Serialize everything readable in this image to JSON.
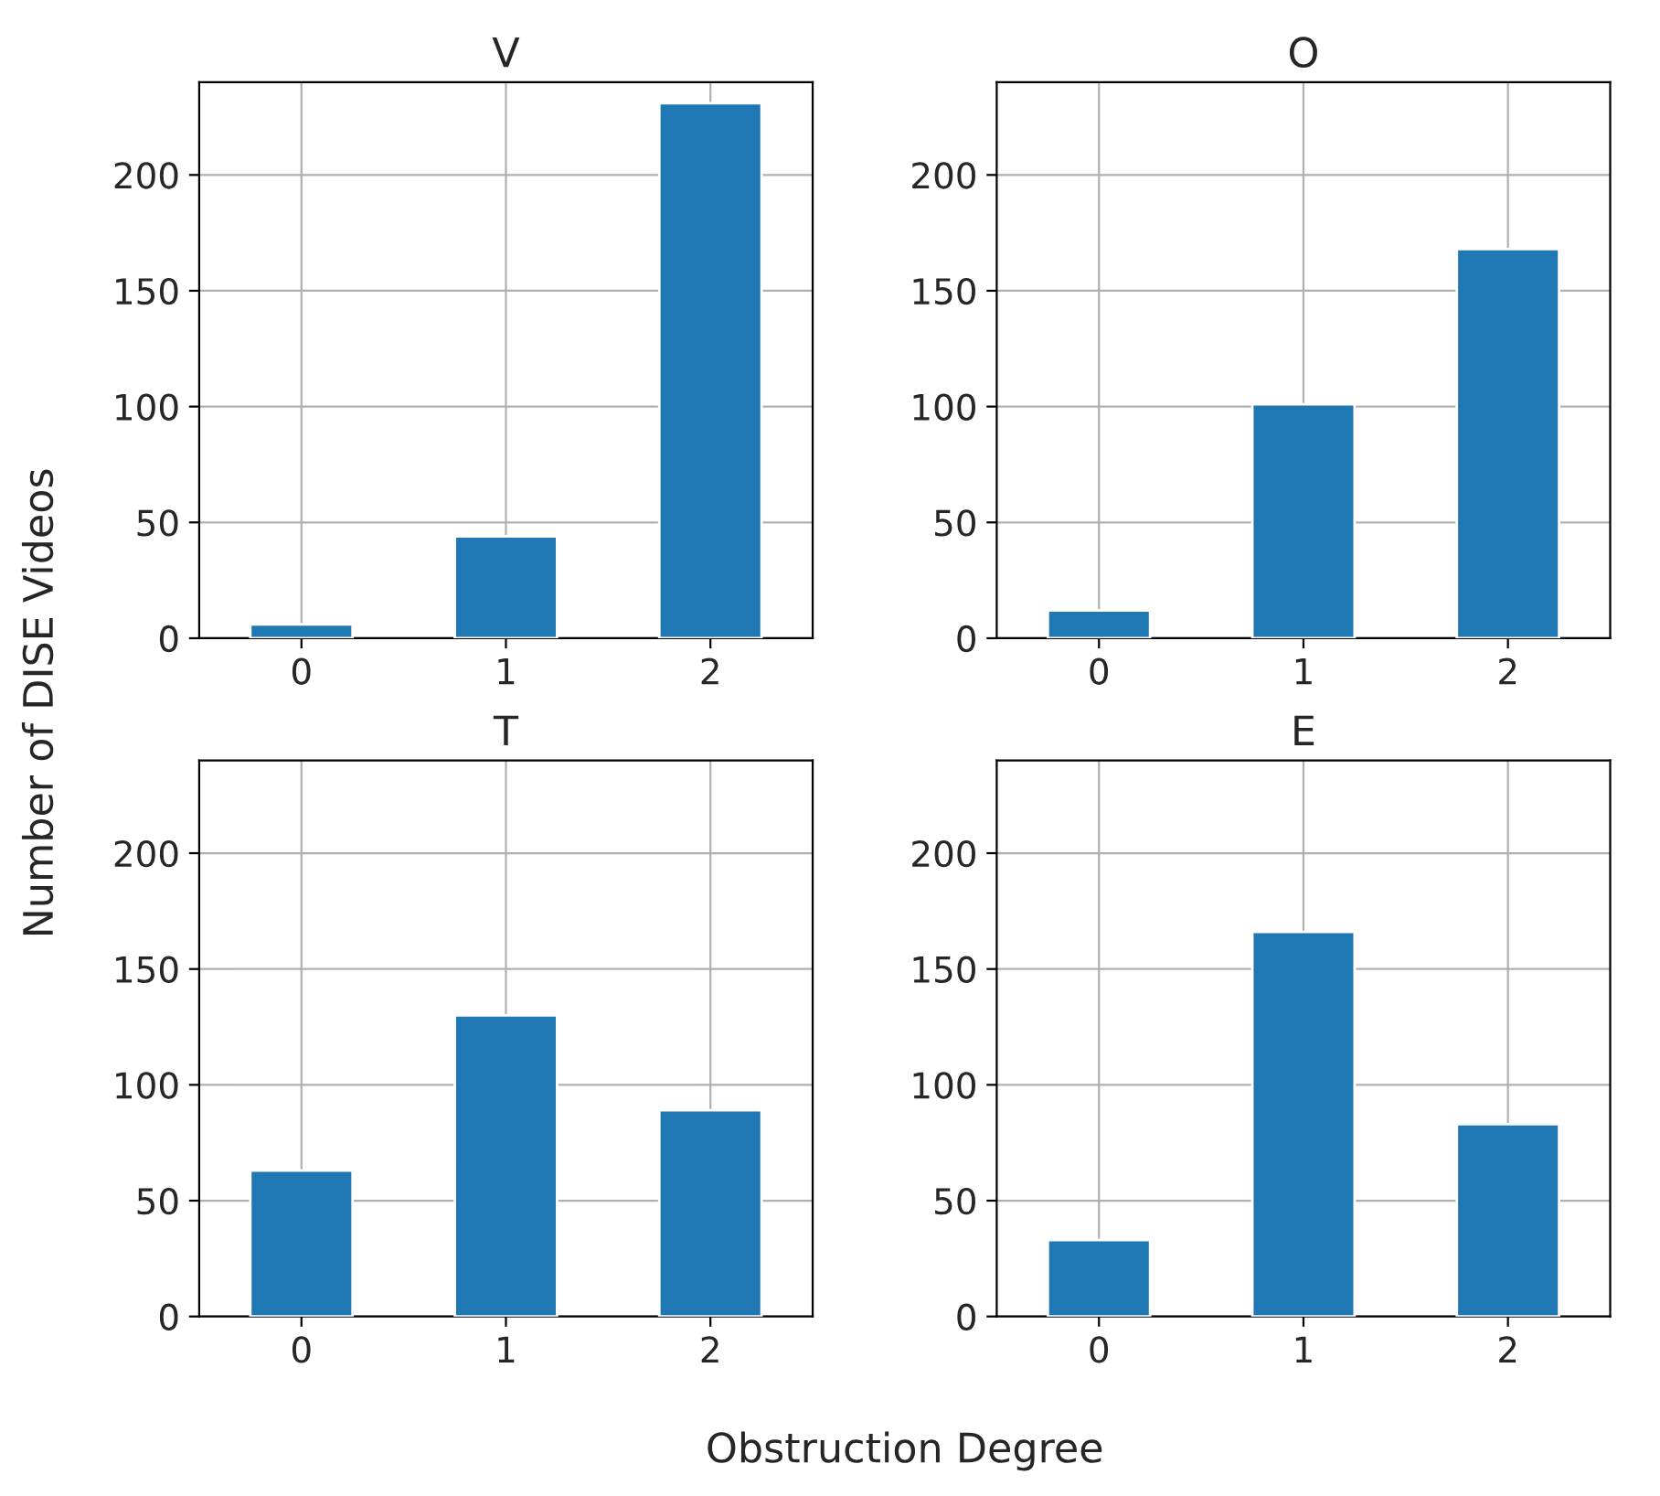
{
  "chart_data": [
    {
      "type": "bar",
      "title": "V",
      "ylabel": "Number of DISE Videos",
      "categories": [
        "0",
        "1",
        "2"
      ],
      "values": [
        6,
        44,
        231
      ],
      "color": "#1f77b4",
      "ylim": [
        0,
        240
      ],
      "yticks": [
        0,
        50,
        100,
        150,
        200
      ],
      "grid": true
    },
    {
      "type": "bar",
      "title": "O",
      "categories": [
        "0",
        "1",
        "2"
      ],
      "values": [
        12,
        101,
        168
      ],
      "color": "#1f77b4",
      "ylim": [
        0,
        240
      ],
      "yticks": [
        0,
        50,
        100,
        150,
        200
      ],
      "grid": true
    },
    {
      "type": "bar",
      "title": "T",
      "xlabel": "Obstruction Degree",
      "categories": [
        "0",
        "1",
        "2"
      ],
      "values": [
        63,
        130,
        89
      ],
      "color": "#1f77b4",
      "ylim": [
        0,
        240
      ],
      "yticks": [
        0,
        50,
        100,
        150,
        200
      ],
      "grid": true
    },
    {
      "type": "bar",
      "title": "E",
      "categories": [
        "0",
        "1",
        "2"
      ],
      "values": [
        33,
        166,
        83
      ],
      "color": "#1f77b4",
      "ylim": [
        0,
        240
      ],
      "yticks": [
        0,
        50,
        100,
        150,
        200
      ],
      "grid": true
    }
  ]
}
